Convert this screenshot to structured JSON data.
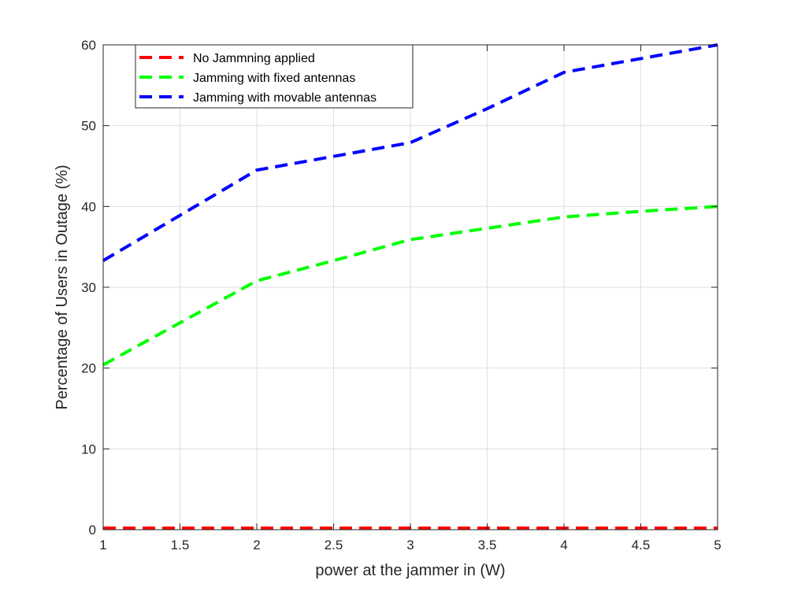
{
  "chart_data": {
    "type": "line",
    "title": "",
    "xlabel": "power at the jammer in (W)",
    "ylabel": "Percentage of Users in Outage (%)",
    "xlim": [
      1,
      5
    ],
    "ylim": [
      0,
      60
    ],
    "xticks": [
      1,
      1.5,
      2,
      2.5,
      3,
      3.5,
      4,
      4.5,
      5
    ],
    "xtick_labels": [
      "1",
      "1.5",
      "2",
      "2.5",
      "3",
      "3.5",
      "4",
      "4.5",
      "5"
    ],
    "yticks": [
      0,
      10,
      20,
      30,
      40,
      50,
      60
    ],
    "ytick_labels": [
      "0",
      "10",
      "20",
      "30",
      "40",
      "50",
      "60"
    ],
    "grid": true,
    "legend_position": "top-left",
    "x": [
      1,
      1.5,
      2,
      2.5,
      3,
      3.5,
      4,
      4.5,
      5
    ],
    "series": [
      {
        "name": "No Jammning applied",
        "color": "#ff0000",
        "style": "dashed",
        "values": [
          0.2,
          0.2,
          0.2,
          0.2,
          0.2,
          0.2,
          0.2,
          0.2,
          0.2
        ]
      },
      {
        "name": "Jamming with fixed antennas",
        "color": "#00ff00",
        "style": "dashed",
        "values": [
          20.4,
          25.6,
          30.8,
          33.3,
          35.9,
          37.3,
          38.7,
          39.4,
          40.0
        ]
      },
      {
        "name": "Jamming with movable antennas",
        "color": "#0000ff",
        "style": "dashed",
        "values": [
          33.3,
          38.9,
          44.5,
          46.2,
          47.9,
          52.1,
          56.6,
          58.3,
          60.0
        ]
      }
    ]
  }
}
